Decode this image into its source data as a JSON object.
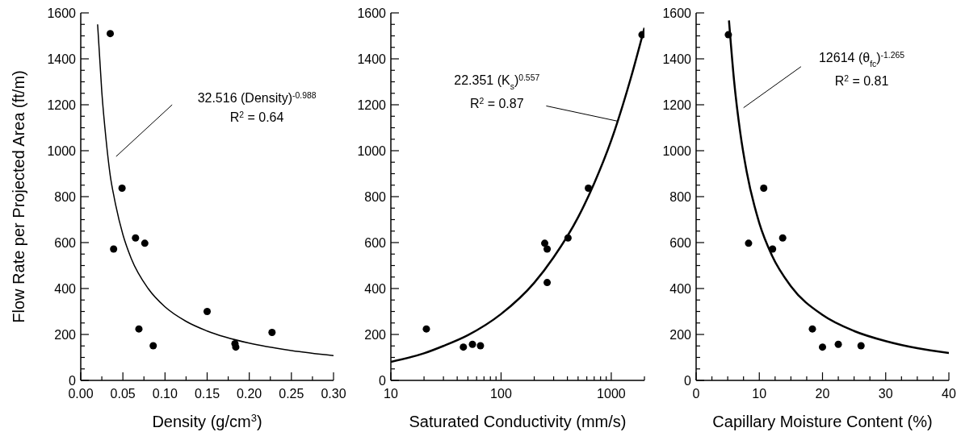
{
  "chart_data": [
    {
      "type": "scatter",
      "xlabel": "Density (g/cm$^{3}$)",
      "ylabel": "Flow Rate per Projected Area (ft/m)",
      "marker": "circle",
      "xlim": [
        0,
        0.3
      ],
      "ylim": [
        0,
        1600
      ],
      "xticks": [
        {
          "value": 0,
          "label": "0.00"
        },
        {
          "value": 0.025,
          "label": null
        },
        {
          "value": 0.05,
          "label": "0.05"
        },
        {
          "value": 0.075,
          "label": null
        },
        {
          "value": 0.1,
          "label": "0.10"
        },
        {
          "value": 0.125,
          "label": null
        },
        {
          "value": 0.15,
          "label": "0.15"
        },
        {
          "value": 0.175,
          "label": null
        },
        {
          "value": 0.2,
          "label": "0.20"
        },
        {
          "value": 0.225,
          "label": null
        },
        {
          "value": 0.25,
          "label": "0.25"
        },
        {
          "value": 0.275,
          "label": null
        },
        {
          "value": 0.3,
          "label": "0.30"
        }
      ],
      "yticks": [
        0,
        {
          "value": 50,
          "label": null
        },
        {
          "value": 100,
          "label": null
        },
        {
          "value": 150,
          "label": null
        },
        200,
        {
          "value": 250,
          "label": null
        },
        {
          "value": 300,
          "label": null
        },
        {
          "value": 350,
          "label": null
        },
        400,
        {
          "value": 450,
          "label": null
        },
        {
          "value": 500,
          "label": null
        },
        {
          "value": 550,
          "label": null
        },
        600,
        {
          "value": 650,
          "label": null
        },
        {
          "value": 700,
          "label": null
        },
        {
          "value": 750,
          "label": null
        },
        800,
        {
          "value": 850,
          "label": null
        },
        {
          "value": 900,
          "label": null
        },
        {
          "value": 950,
          "label": null
        },
        1000,
        {
          "value": 1050,
          "label": null
        },
        {
          "value": 1100,
          "label": null
        },
        {
          "value": 1150,
          "label": null
        },
        1200,
        {
          "value": 1250,
          "label": null
        },
        {
          "value": 1300,
          "label": null
        },
        {
          "value": 1350,
          "label": null
        },
        1400,
        {
          "value": 1450,
          "label": null
        },
        {
          "value": 1500,
          "label": null
        },
        {
          "value": 1550,
          "label": null
        },
        1600
      ],
      "annotations": [
        "32.516 (Density)$^{-0.988}$",
        "R$^{2}$ = 0.64"
      ],
      "series": [
        {
          "type": "scatter",
          "color": "#000000",
          "x": [
            0.035,
            0.049,
            0.039,
            0.065,
            0.076,
            0.069,
            0.086,
            0.15,
            0.183,
            0.184,
            0.227
          ],
          "values": [
            1510,
            837,
            572,
            620,
            597,
            224,
            151,
            300,
            160,
            145,
            209
          ]
        },
        {
          "type": "line",
          "color": "#000000",
          "marker": "none",
          "x": [
            0.02,
            0.025,
            0.03,
            0.035,
            0.04,
            0.05,
            0.06,
            0.08,
            0.1,
            0.125,
            0.15,
            0.2,
            0.25,
            0.3
          ],
          "values": [
            1550,
            1255,
            1050,
            892,
            790,
            635,
            530,
            400,
            320,
            257,
            215,
            162,
            130,
            108
          ]
        }
      ]
    },
    {
      "type": "scatter",
      "xlabel": "Saturated Conductivity (mm/s)",
      "marker": "circle",
      "log": "x",
      "xlim": [
        10,
        2000
      ],
      "ylim": [
        0,
        1600
      ],
      "xticks": [
        10,
        {
          "value": 20,
          "label": null
        },
        {
          "value": 30,
          "label": null
        },
        {
          "value": 40,
          "label": null
        },
        {
          "value": 50,
          "label": null
        },
        {
          "value": 60,
          "label": null
        },
        {
          "value": 70,
          "label": null
        },
        {
          "value": 80,
          "label": null
        },
        {
          "value": 90,
          "label": null
        },
        100,
        {
          "value": 200,
          "label": null
        },
        {
          "value": 300,
          "label": null
        },
        {
          "value": 400,
          "label": null
        },
        {
          "value": 500,
          "label": null
        },
        {
          "value": 600,
          "label": null
        },
        {
          "value": 700,
          "label": null
        },
        {
          "value": 800,
          "label": null
        },
        {
          "value": 900,
          "label": null
        },
        1000,
        {
          "value": 2000,
          "label": null
        }
      ],
      "yticks": [
        0,
        {
          "value": 50,
          "label": null
        },
        {
          "value": 100,
          "label": null
        },
        {
          "value": 150,
          "label": null
        },
        200,
        {
          "value": 250,
          "label": null
        },
        {
          "value": 300,
          "label": null
        },
        {
          "value": 350,
          "label": null
        },
        400,
        {
          "value": 450,
          "label": null
        },
        {
          "value": 500,
          "label": null
        },
        {
          "value": 550,
          "label": null
        },
        600,
        {
          "value": 650,
          "label": null
        },
        {
          "value": 700,
          "label": null
        },
        {
          "value": 750,
          "label": null
        },
        800,
        {
          "value": 850,
          "label": null
        },
        {
          "value": 900,
          "label": null
        },
        {
          "value": 950,
          "label": null
        },
        1000,
        {
          "value": 1050,
          "label": null
        },
        {
          "value": 1100,
          "label": null
        },
        {
          "value": 1150,
          "label": null
        },
        1200,
        {
          "value": 1250,
          "label": null
        },
        {
          "value": 1300,
          "label": null
        },
        {
          "value": 1350,
          "label": null
        },
        1400,
        {
          "value": 1450,
          "label": null
        },
        {
          "value": 1500,
          "label": null
        },
        {
          "value": 1550,
          "label": null
        },
        1600
      ],
      "annotations": [
        "22.351 (K$_{s}$)$^{0.557}$",
        "R$^{2}$ = 0.87"
      ],
      "series": [
        {
          "type": "scatter",
          "color": "#000000",
          "x": [
            21,
            45.5,
            55,
            65,
            249,
            262,
            262,
            405,
            620,
            1900
          ],
          "values": [
            224,
            145,
            157,
            151,
            597,
            572,
            426,
            620,
            837,
            1505
          ]
        },
        {
          "type": "line",
          "color": "#000000",
          "marker": "none",
          "x": [
            10,
            20,
            30,
            50,
            100,
            200,
            300,
            500,
            700,
            1000,
            1500,
            2000
          ],
          "values": [
            81,
            118,
            150,
            197,
            289,
            425,
            536,
            710,
            858,
            1045,
            1314,
            1535
          ]
        }
      ]
    },
    {
      "type": "scatter",
      "xlabel": "Capillary Moisture Content (%)",
      "marker": "circle",
      "xlim": [
        0,
        40
      ],
      "ylim": [
        0,
        1600
      ],
      "xticks": [
        0,
        {
          "value": 2.5,
          "label": null
        },
        {
          "value": 5,
          "label": null
        },
        {
          "value": 7.5,
          "label": null
        },
        10,
        {
          "value": 12.5,
          "label": null
        },
        {
          "value": 15,
          "label": null
        },
        {
          "value": 17.5,
          "label": null
        },
        20,
        {
          "value": 22.5,
          "label": null
        },
        {
          "value": 25,
          "label": null
        },
        {
          "value": 27.5,
          "label": null
        },
        30,
        {
          "value": 32.5,
          "label": null
        },
        {
          "value": 35,
          "label": null
        },
        {
          "value": 37.5,
          "label": null
        },
        40
      ],
      "yticks": [
        0,
        {
          "value": 50,
          "label": null
        },
        {
          "value": 100,
          "label": null
        },
        {
          "value": 150,
          "label": null
        },
        200,
        {
          "value": 250,
          "label": null
        },
        {
          "value": 300,
          "label": null
        },
        {
          "value": 350,
          "label": null
        },
        400,
        {
          "value": 450,
          "label": null
        },
        {
          "value": 500,
          "label": null
        },
        {
          "value": 550,
          "label": null
        },
        600,
        {
          "value": 650,
          "label": null
        },
        {
          "value": 700,
          "label": null
        },
        {
          "value": 750,
          "label": null
        },
        800,
        {
          "value": 850,
          "label": null
        },
        {
          "value": 900,
          "label": null
        },
        {
          "value": 950,
          "label": null
        },
        1000,
        {
          "value": 1050,
          "label": null
        },
        {
          "value": 1100,
          "label": null
        },
        {
          "value": 1150,
          "label": null
        },
        1200,
        {
          "value": 1250,
          "label": null
        },
        {
          "value": 1300,
          "label": null
        },
        {
          "value": 1350,
          "label": null
        },
        1400,
        {
          "value": 1450,
          "label": null
        },
        {
          "value": 1500,
          "label": null
        },
        {
          "value": 1550,
          "label": null
        },
        1600
      ],
      "annotations": [
        "12614 (θ$_{fc}$)$^{-1.265}$",
        "R$^{2}$ = 0.81"
      ],
      "series": [
        {
          "type": "scatter",
          "color": "#000000",
          "x": [
            5.1,
            10.7,
            8.3,
            12.1,
            13.7,
            18.4,
            20.0,
            22.5,
            26.1
          ],
          "values": [
            1505,
            837,
            597,
            572,
            620,
            224,
            145,
            157,
            151
          ]
        },
        {
          "type": "line",
          "color": "#000000",
          "marker": "none",
          "x": [
            5.2,
            6,
            7,
            8,
            10,
            12,
            15,
            20,
            25,
            30,
            35,
            40
          ],
          "values": [
            1567,
            1307,
            1076,
            909,
            685,
            544,
            410,
            285,
            215,
            171,
            140,
            119
          ]
        }
      ]
    }
  ]
}
